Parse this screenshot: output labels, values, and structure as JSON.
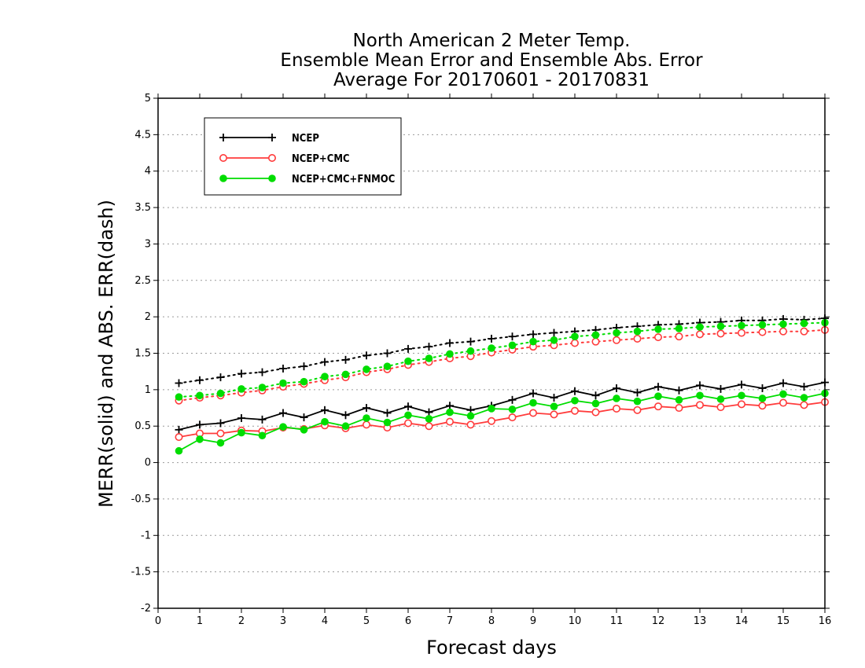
{
  "chart_data": {
    "type": "line",
    "title": [
      "North American 2 Meter Temp.",
      "Ensemble Mean Error and Ensemble Abs. Error",
      "Average For 20170601 - 20170831"
    ],
    "xlabel": "Forecast days",
    "ylabel": "MERR(solid) and ABS. ERR(dash)",
    "xlim": [
      0,
      16
    ],
    "ylim": [
      -2,
      5
    ],
    "xticks": [
      "0",
      "1",
      "2",
      "3",
      "4",
      "5",
      "6",
      "7",
      "8",
      "9",
      "10",
      "11",
      "12",
      "13",
      "14",
      "15",
      "16"
    ],
    "yticks": [
      "-2",
      "-1.5",
      "-1",
      "-0.5",
      "0",
      "0.5",
      "1",
      "1.5",
      "2",
      "2.5",
      "3",
      "3.5",
      "4",
      "4.5",
      "5"
    ],
    "grid": "horizontal dotted",
    "legend_position": "top-left",
    "x": [
      0.5,
      1,
      1.5,
      2,
      2.5,
      3,
      3.5,
      4,
      4.5,
      5,
      5.5,
      6,
      6.5,
      7,
      7.5,
      8,
      8.5,
      9,
      9.5,
      10,
      10.5,
      11,
      11.5,
      12,
      12.5,
      13,
      13.5,
      14,
      14.5,
      15,
      15.5,
      16
    ],
    "series": [
      {
        "name": "NCEP",
        "color": "#000000",
        "marker": "plus",
        "merr": [
          0.45,
          0.52,
          0.54,
          0.61,
          0.59,
          0.68,
          0.62,
          0.72,
          0.65,
          0.75,
          0.68,
          0.77,
          0.69,
          0.78,
          0.72,
          0.78,
          0.86,
          0.95,
          0.89,
          0.98,
          0.92,
          1.02,
          0.96,
          1.04,
          0.99,
          1.06,
          1.01,
          1.07,
          1.02,
          1.09,
          1.04,
          1.1
        ],
        "abs_err": [
          1.09,
          1.13,
          1.17,
          1.22,
          1.24,
          1.29,
          1.32,
          1.38,
          1.41,
          1.47,
          1.5,
          1.56,
          1.59,
          1.64,
          1.66,
          1.7,
          1.73,
          1.76,
          1.78,
          1.8,
          1.82,
          1.85,
          1.87,
          1.89,
          1.9,
          1.92,
          1.93,
          1.95,
          1.95,
          1.97,
          1.96,
          1.98
        ]
      },
      {
        "name": "NCEP+CMC",
        "color": "#ff3b3b",
        "marker": "open-circle",
        "merr": [
          0.35,
          0.4,
          0.4,
          0.44,
          0.43,
          0.48,
          0.46,
          0.51,
          0.47,
          0.52,
          0.48,
          0.54,
          0.5,
          0.56,
          0.52,
          0.57,
          0.62,
          0.68,
          0.66,
          0.71,
          0.69,
          0.74,
          0.72,
          0.77,
          0.75,
          0.79,
          0.76,
          0.8,
          0.78,
          0.82,
          0.79,
          0.83
        ],
        "abs_err": [
          0.85,
          0.89,
          0.92,
          0.96,
          0.99,
          1.04,
          1.08,
          1.13,
          1.17,
          1.24,
          1.28,
          1.34,
          1.38,
          1.43,
          1.46,
          1.51,
          1.55,
          1.59,
          1.61,
          1.64,
          1.66,
          1.68,
          1.7,
          1.72,
          1.73,
          1.76,
          1.77,
          1.78,
          1.79,
          1.8,
          1.8,
          1.82
        ]
      },
      {
        "name": "NCEP+CMC+FNMOC",
        "color": "#00dd00",
        "marker": "filled-circle",
        "merr": [
          0.16,
          0.32,
          0.27,
          0.41,
          0.37,
          0.49,
          0.45,
          0.56,
          0.5,
          0.61,
          0.55,
          0.65,
          0.6,
          0.69,
          0.64,
          0.74,
          0.73,
          0.82,
          0.77,
          0.85,
          0.81,
          0.88,
          0.84,
          0.91,
          0.86,
          0.92,
          0.87,
          0.92,
          0.88,
          0.94,
          0.89,
          0.95
        ],
        "abs_err": [
          0.9,
          0.92,
          0.95,
          1.01,
          1.03,
          1.09,
          1.11,
          1.18,
          1.21,
          1.28,
          1.32,
          1.39,
          1.43,
          1.49,
          1.53,
          1.57,
          1.61,
          1.66,
          1.68,
          1.73,
          1.75,
          1.78,
          1.8,
          1.83,
          1.84,
          1.86,
          1.87,
          1.88,
          1.89,
          1.9,
          1.91,
          1.92
        ]
      }
    ]
  }
}
